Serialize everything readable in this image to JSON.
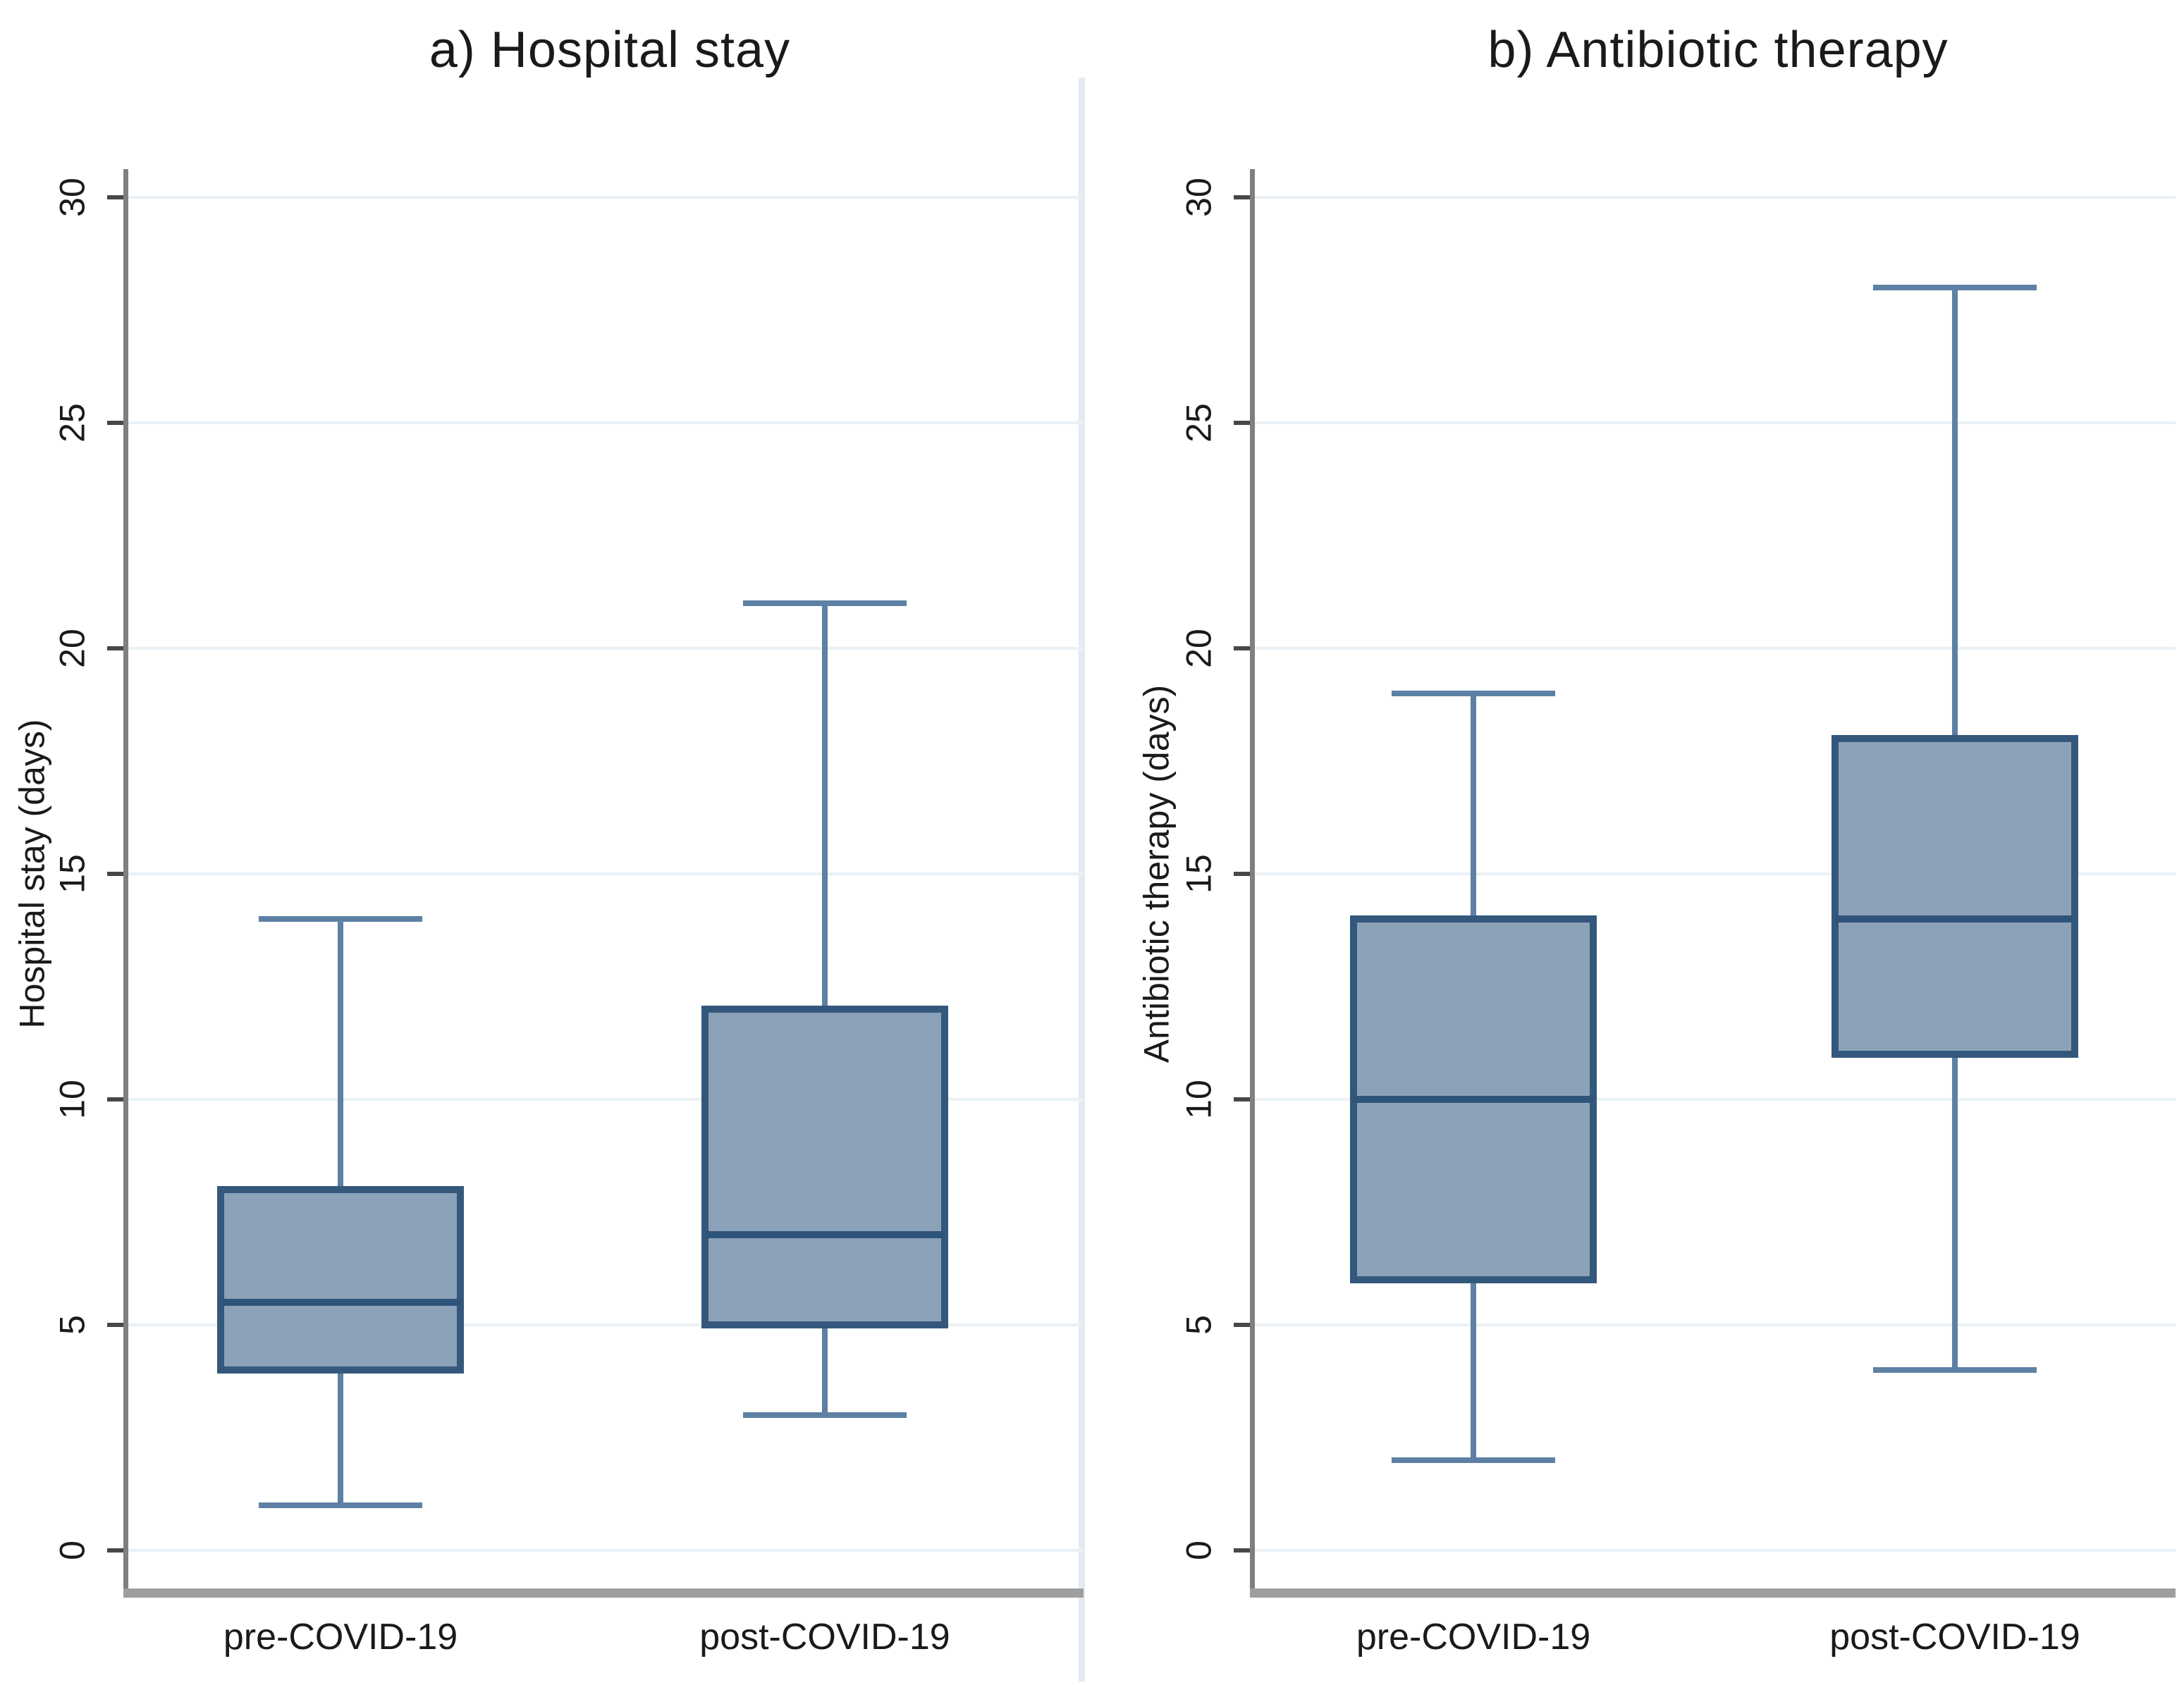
{
  "figure": {
    "background": "#ffffff"
  },
  "chart_data": [
    {
      "type": "box",
      "title": "a) Hospital stay",
      "ylabel": "Hospital stay (days)",
      "xlabel": "",
      "ylim": [
        0,
        30
      ],
      "yticks": [
        0,
        5,
        10,
        15,
        20,
        25,
        30
      ],
      "grid": "horizontal-light",
      "legend": "none",
      "categories": [
        "pre-COVID-19",
        "post-COVID-19"
      ],
      "series": [
        {
          "category": "pre-COVID-19",
          "whisker_low": 1,
          "q1": 4,
          "median": 5.5,
          "q3": 8,
          "whisker_high": 14
        },
        {
          "category": "post-COVID-19",
          "whisker_low": 3,
          "q1": 5,
          "median": 7,
          "q3": 12,
          "whisker_high": 21
        }
      ]
    },
    {
      "type": "box",
      "title": "b) Antibiotic therapy",
      "ylabel": "Antibiotic therapy (days)",
      "xlabel": "",
      "ylim": [
        0,
        30
      ],
      "yticks": [
        0,
        5,
        10,
        15,
        20,
        25,
        30
      ],
      "grid": "horizontal-light",
      "legend": "none",
      "categories": [
        "pre-COVID-19",
        "post-COVID-19"
      ],
      "series": [
        {
          "category": "pre-COVID-19",
          "whisker_low": 2,
          "q1": 6,
          "median": 10,
          "q3": 14,
          "whisker_high": 19
        },
        {
          "category": "post-COVID-19",
          "whisker_low": 4,
          "q1": 11,
          "median": 14,
          "q3": 18,
          "whisker_high": 28
        }
      ]
    }
  ],
  "style": {
    "box_fill": "#8CA2B8",
    "box_border": "#34587C",
    "median_color": "#2F547A",
    "whisker_color": "#5D80A4",
    "grid_color": "#E9F1F6",
    "y_axis_color": "#7F7F7F",
    "x_axis_color": "#9E9E9E",
    "tick_color": "#474747",
    "text_color": "#1A1A1A",
    "divider_color": "#E2EBF2"
  }
}
